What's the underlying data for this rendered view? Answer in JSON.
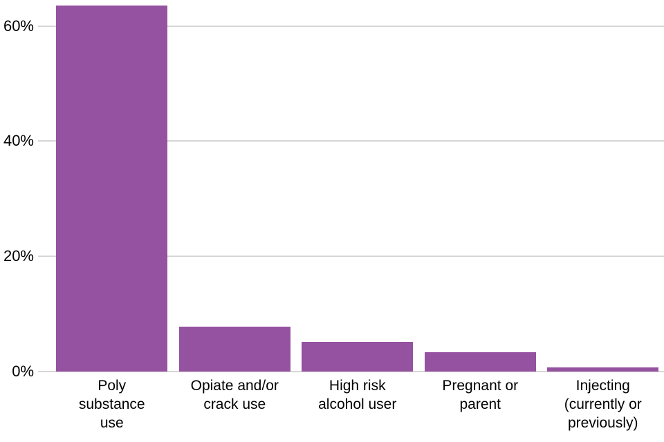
{
  "chart_data": {
    "type": "bar",
    "title": "",
    "xlabel": "",
    "ylabel": "",
    "categories": [
      "Poly substance use",
      "Opiate and/or crack use",
      "High risk alcohol user",
      "Pregnant or parent",
      "Injecting (currently or previously)"
    ],
    "tick_labels": [
      "Poly\nsubstance\nuse",
      "Opiate and/or\ncrack use",
      "High risk\nalcohol user",
      "Pregnant or\nparent",
      "Injecting\n(currently or\npreviously)"
    ],
    "values": [
      63.6,
      7.8,
      5.2,
      3.3,
      0.7
    ],
    "unit": "%",
    "ylim": [
      0,
      64.5
    ],
    "yticks": [
      {
        "value": 0,
        "label": "0%"
      },
      {
        "value": 20,
        "label": "20%"
      },
      {
        "value": 40,
        "label": "40%"
      },
      {
        "value": 60,
        "label": "60%"
      }
    ],
    "grid": true,
    "legend": false,
    "colors": {
      "bar": "#9552a0",
      "gridline": "#d6d6d6",
      "axis_text": "#000000",
      "background": "#ffffff"
    }
  }
}
